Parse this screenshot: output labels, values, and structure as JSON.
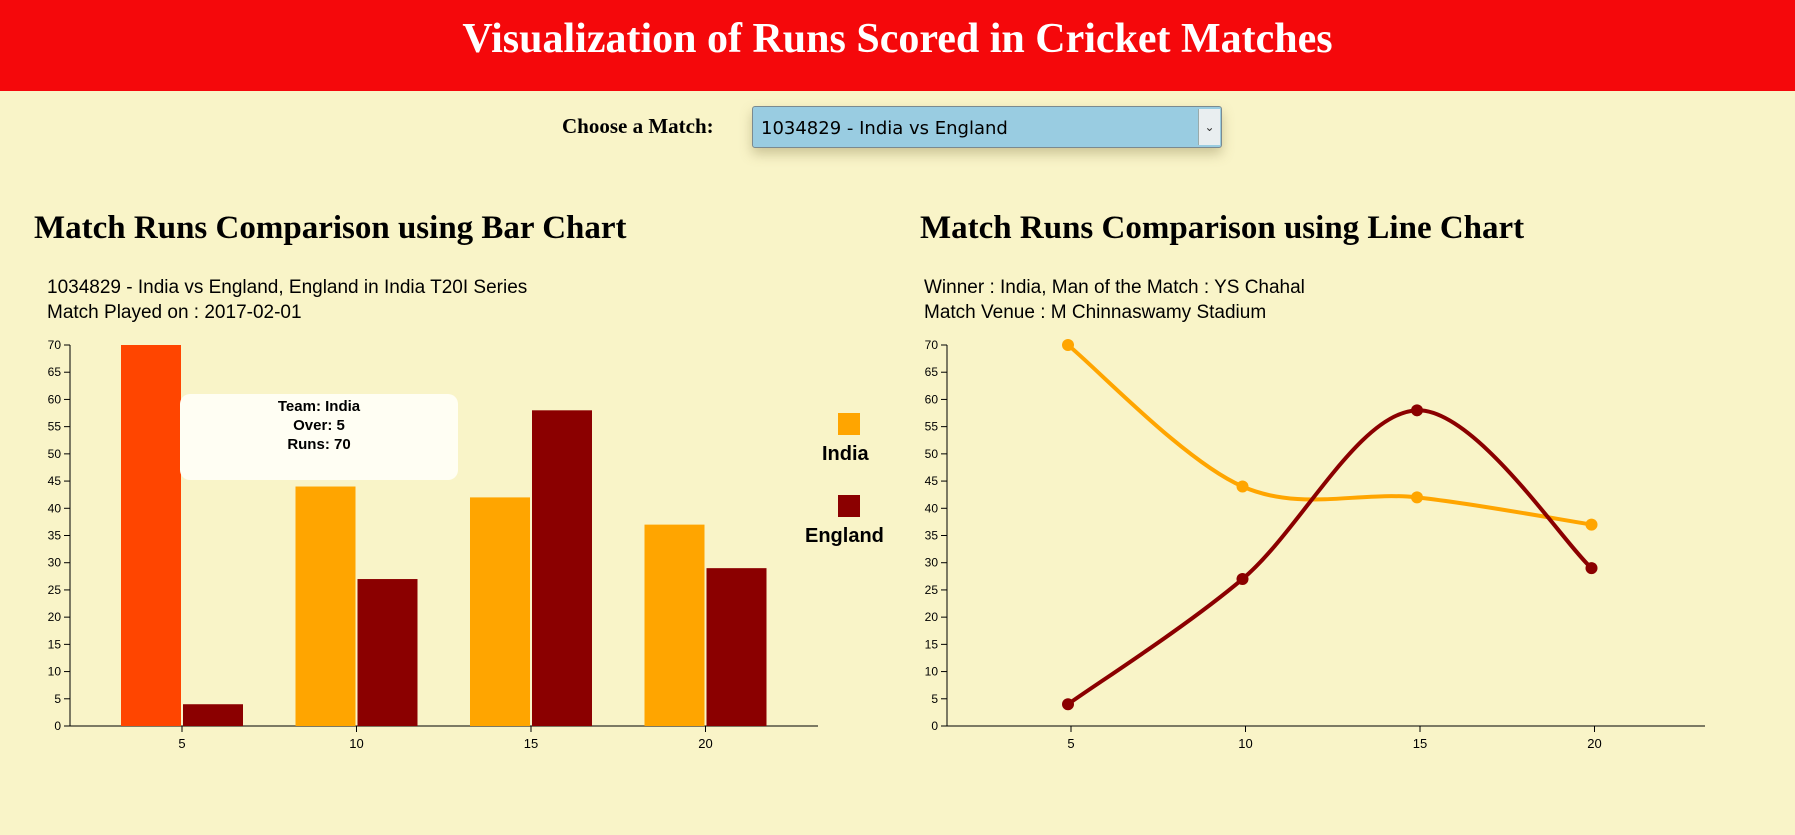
{
  "header": {
    "title": "Visualization of Runs Scored in Cricket Matches"
  },
  "picker": {
    "label": "Choose a Match:",
    "selected": "1034829 - India vs England",
    "arrow_icon": "chevron-down-icon"
  },
  "bar_section": {
    "title": "Match Runs Comparison using Bar Chart",
    "info_line1": "1034829 - India vs England, England in India T20I Series",
    "info_line2": "Match Played on : 2017-02-01"
  },
  "line_section": {
    "title": "Match Runs Comparison using Line Chart",
    "info_line1": "Winner : India, Man of the Match : YS Chahal",
    "info_line2": "Match Venue : M Chinnaswamy Stadium"
  },
  "tooltip": {
    "team": "Team: India",
    "over": "Over: 5",
    "runs": "Runs: 70"
  },
  "legend": [
    {
      "name": "India",
      "color": "#ffa500"
    },
    {
      "name": "England",
      "color": "#8b0000"
    }
  ],
  "colors": {
    "highlight": "#ff4500",
    "india": "#ffa500",
    "england": "#8b0000"
  },
  "chart_data": [
    {
      "type": "bar",
      "title": "",
      "xlabel": "",
      "ylabel": "",
      "categories": [
        "5",
        "10",
        "15",
        "20"
      ],
      "series": [
        {
          "name": "India",
          "values": [
            70,
            44,
            42,
            37
          ]
        },
        {
          "name": "England",
          "values": [
            4,
            27,
            58,
            29
          ]
        }
      ],
      "ylim": [
        0,
        70
      ],
      "yticks": [
        0,
        5,
        10,
        15,
        20,
        25,
        30,
        35,
        40,
        45,
        50,
        55,
        60,
        65,
        70
      ],
      "highlighted": {
        "series": "India",
        "category": "5"
      },
      "legend_position": "right"
    },
    {
      "type": "line",
      "title": "",
      "xlabel": "",
      "ylabel": "",
      "x": [
        5,
        10,
        15,
        20
      ],
      "series": [
        {
          "name": "India",
          "values": [
            70,
            44,
            42,
            37
          ]
        },
        {
          "name": "England",
          "values": [
            4,
            27,
            58,
            29
          ]
        }
      ],
      "ylim": [
        0,
        70
      ],
      "yticks": [
        0,
        5,
        10,
        15,
        20,
        25,
        30,
        35,
        40,
        45,
        50,
        55,
        60,
        65,
        70
      ],
      "xticks": [
        5,
        10,
        15,
        20
      ]
    }
  ]
}
